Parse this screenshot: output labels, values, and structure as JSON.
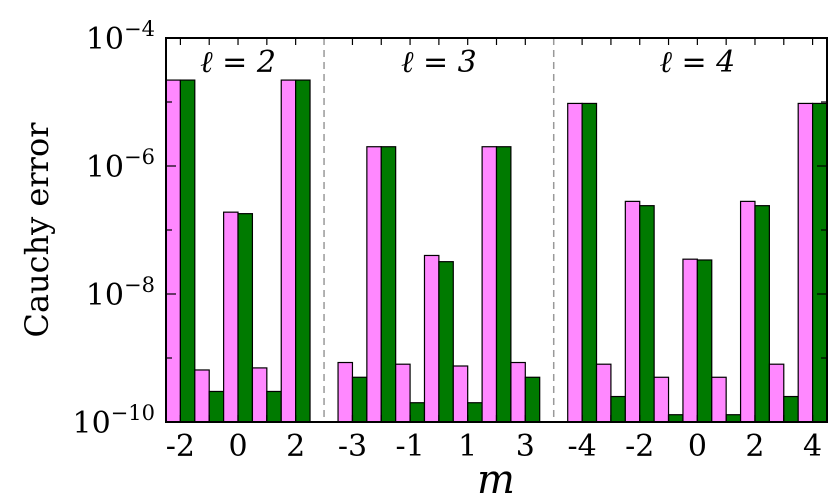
{
  "chart_data": {
    "type": "bar",
    "ylabel": "Cauchy error",
    "xlabel": "m",
    "yscale": "log",
    "ylim": [
      1e-10,
      0.0001
    ],
    "ytick_labels": [
      {
        "base": "10",
        "exp": "−4"
      },
      {
        "base": "10",
        "exp": "−6"
      },
      {
        "base": "10",
        "exp": "−8"
      },
      {
        "base": "10",
        "exp": "−10"
      }
    ],
    "series_colors": [
      "#ff88ff",
      "#007a00"
    ],
    "panels": [
      {
        "label": "ℓ = 2",
        "m": [
          -2,
          -1,
          0,
          1,
          2
        ],
        "tick_labels": [
          "-2",
          "0",
          "2"
        ],
        "values": [
          [
            2.2e-05,
            2.2e-05
          ],
          [
            6.5e-10,
            3e-10
          ],
          [
            1.9e-07,
            1.8e-07
          ],
          [
            7e-10,
            3e-10
          ],
          [
            2.2e-05,
            2.2e-05
          ]
        ]
      },
      {
        "label": "ℓ = 3",
        "m": [
          -3,
          -2,
          -1,
          0,
          1,
          2,
          3
        ],
        "tick_labels": [
          "-3",
          "-1",
          "1",
          "3"
        ],
        "values": [
          [
            8.5e-10,
            5e-10
          ],
          [
            2e-06,
            2e-06
          ],
          [
            8e-10,
            2e-10
          ],
          [
            4e-08,
            3.2e-08
          ],
          [
            7.5e-10,
            2e-10
          ],
          [
            2e-06,
            2e-06
          ],
          [
            8.5e-10,
            5e-10
          ]
        ]
      },
      {
        "label": "ℓ = 4",
        "m": [
          -4,
          -3,
          -2,
          -1,
          0,
          1,
          2,
          3,
          4
        ],
        "tick_labels": [
          "-4",
          "-2",
          "0",
          "2",
          "4"
        ],
        "values": [
          [
            9.5e-06,
            9.5e-06
          ],
          [
            8e-10,
            2.5e-10
          ],
          [
            2.8e-07,
            2.4e-07
          ],
          [
            5e-10,
            1.3e-10
          ],
          [
            3.5e-08,
            3.4e-08
          ],
          [
            5e-10,
            1.3e-10
          ],
          [
            2.8e-07,
            2.4e-07
          ],
          [
            8e-10,
            2.5e-10
          ],
          [
            9.5e-06,
            9.5e-06
          ]
        ]
      }
    ]
  }
}
